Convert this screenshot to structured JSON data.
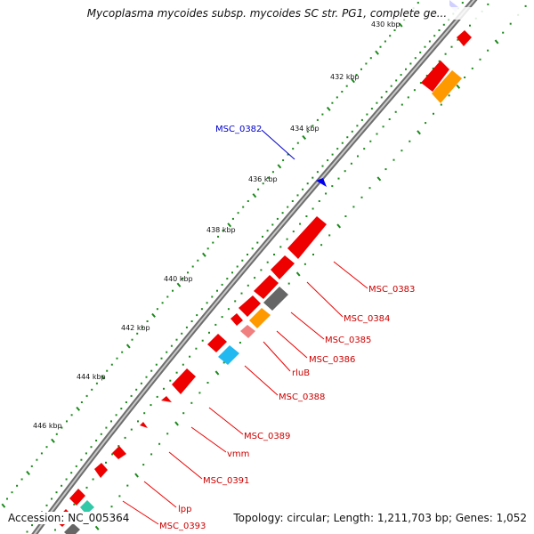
{
  "map": {
    "title": "Mycoplasma mycoides subsp. mycoides SC str. PG1, complete ge...",
    "accession": "Accession: NC_005364",
    "summary": "Topology: circular; Length: 1,211,703 bp; Genes: 1,052"
  },
  "ticks": [
    {
      "label": "430 kbp"
    },
    {
      "label": "432 kbp"
    },
    {
      "label": "434 kbp"
    },
    {
      "label": "436 kbp"
    },
    {
      "label": "438 kbp"
    },
    {
      "label": "440 kbp"
    },
    {
      "label": "442 kbp"
    },
    {
      "label": "444 kbp"
    },
    {
      "label": "446 kbp"
    }
  ],
  "gene_labels": [
    {
      "text": "MSC_0382",
      "color": "#0000cc"
    },
    {
      "text": "MSC_0383",
      "color": "#cc0000"
    },
    {
      "text": "MSC_0384",
      "color": "#cc0000"
    },
    {
      "text": "MSC_0385",
      "color": "#cc0000"
    },
    {
      "text": "MSC_0386",
      "color": "#cc0000"
    },
    {
      "text": "rluB",
      "color": "#cc0000"
    },
    {
      "text": "MSC_0388",
      "color": "#cc0000"
    },
    {
      "text": "MSC_0389",
      "color": "#cc0000"
    },
    {
      "text": "vmm",
      "color": "#cc0000"
    },
    {
      "text": "MSC_0391",
      "color": "#cc0000"
    },
    {
      "text": "lpp",
      "color": "#cc0000"
    },
    {
      "text": "MSC_0393",
      "color": "#cc0000"
    }
  ],
  "colors": {
    "backbone": "#8c8c8c",
    "cds": "#ee0000",
    "dark_feature": "#666666",
    "orange_feature": "#ff9900",
    "pink_feature": "#f08080",
    "cyan_feature": "#22b8f0",
    "blue_feature": "#0000ee",
    "tick_dots": "#1a8a1a"
  }
}
